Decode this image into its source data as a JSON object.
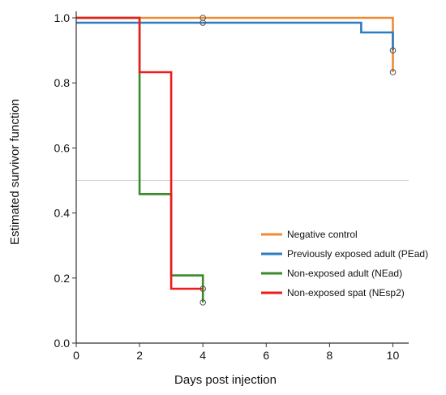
{
  "chart_data": {
    "type": "line",
    "title": "",
    "xlabel": "Days post injection",
    "ylabel": "Estimated survivor function",
    "xlim": [
      0,
      10.5
    ],
    "ylim": [
      0,
      1.0
    ],
    "xticks": [
      0,
      2,
      4,
      6,
      8,
      10
    ],
    "yticks": [
      0.0,
      0.2,
      0.4,
      0.6,
      0.8,
      1.0
    ],
    "ytick_labels": [
      "0.0",
      "0.2",
      "0.4",
      "0.6",
      "0.8",
      "1.0"
    ],
    "reference_line": 0.5,
    "legend_position": "center-right",
    "series": [
      {
        "name": "Negative control",
        "color": "#f08a33",
        "steps": [
          [
            0,
            1.0
          ],
          [
            10,
            1.0
          ],
          [
            10,
            0.833
          ]
        ],
        "censored": [
          [
            4,
            1.0
          ],
          [
            10,
            0.833
          ]
        ]
      },
      {
        "name": "Previously exposed adult (PEad)",
        "color": "#2d7bc0",
        "steps": [
          [
            0,
            0.985
          ],
          [
            9,
            0.985
          ],
          [
            9,
            0.955
          ],
          [
            10,
            0.955
          ],
          [
            10,
            0.9
          ]
        ],
        "censored": [
          [
            4,
            0.985
          ],
          [
            10,
            0.9
          ]
        ]
      },
      {
        "name": "Non-exposed adult (NEad)",
        "color": "#3a8a2a",
        "steps": [
          [
            0,
            1.0
          ],
          [
            2,
            1.0
          ],
          [
            2,
            0.458
          ],
          [
            3,
            0.458
          ],
          [
            3,
            0.208
          ],
          [
            4,
            0.208
          ],
          [
            4,
            0.125
          ]
        ],
        "censored": [
          [
            4,
            0.125
          ]
        ]
      },
      {
        "name": "Non-exposed spat (NEsp2)",
        "color": "#ee1c1c",
        "steps": [
          [
            0,
            1.0
          ],
          [
            2,
            1.0
          ],
          [
            2,
            0.833
          ],
          [
            3,
            0.833
          ],
          [
            3,
            0.167
          ],
          [
            4,
            0.167
          ]
        ],
        "censored": [
          [
            4,
            0.167
          ]
        ]
      }
    ]
  }
}
